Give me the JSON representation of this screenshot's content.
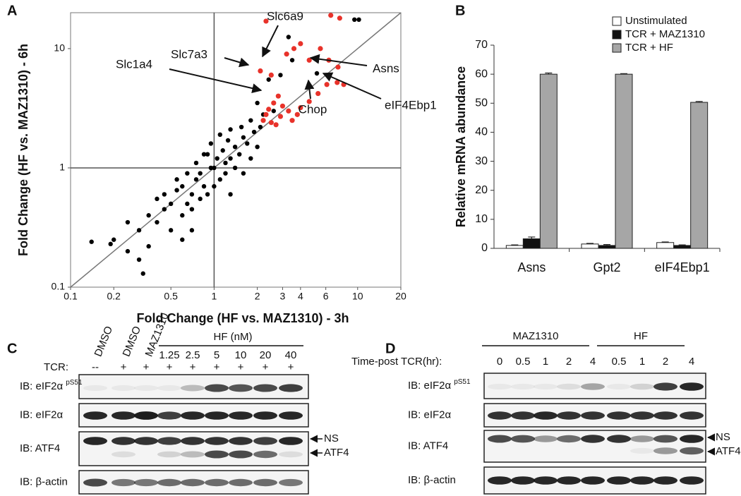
{
  "chart_data": [
    {
      "type": "scatter",
      "panel": "A",
      "x_label": "Fold Change (HF vs. MAZ1310) - 3h",
      "y_label": "Fold Change (HF vs. MAZ1310) - 6h",
      "log_x": true,
      "log_y": true,
      "xlim": [
        0.1,
        20
      ],
      "ylim": [
        0.1,
        20
      ],
      "xticks": [
        0.1,
        0.2,
        0.5,
        1,
        2,
        3,
        4,
        6,
        10,
        20
      ],
      "yticks": [
        0.1,
        1,
        10
      ],
      "hline": 1,
      "vline": 1,
      "diagonal": true,
      "series": [
        {
          "color": "#000000",
          "x": [
            1,
            0.8,
            1.2,
            0.7,
            1.4,
            0.6,
            0.9,
            1.1,
            1.6,
            0.5,
            0.55,
            0.65,
            0.75,
            0.85,
            0.95,
            1.05,
            1.15,
            1.3,
            1.5,
            1.7,
            1.9,
            2.1,
            0.45,
            0.4,
            0.35,
            0.3,
            0.5,
            0.6,
            0.7,
            0.8,
            0.9,
            1.0,
            1.2,
            1.4,
            0.45,
            0.55,
            0.65,
            0.75,
            0.85,
            0.95,
            1.1,
            1.3,
            1.8,
            2.2,
            2.6,
            0.2,
            0.25,
            0.14,
            0.19,
            0.3,
            0.32,
            0.35,
            0.6,
            0.7,
            1.6,
            1.3,
            2.4,
            2.9,
            3.5,
            3.3,
            9.5,
            10.2,
            5.2,
            0.4,
            1.25,
            1.55,
            0.25,
            2.0,
            2.0,
            1.8
          ],
          "y": [
            1,
            0.9,
            1.1,
            0.6,
            1.5,
            0.7,
            1.3,
            0.8,
            1.8,
            0.5,
            0.65,
            0.5,
            0.8,
            0.7,
            1.0,
            1.2,
            1.4,
            1.2,
            1.3,
            1.6,
            2.0,
            2.2,
            0.45,
            0.35,
            0.4,
            0.3,
            0.3,
            0.4,
            0.45,
            0.55,
            0.6,
            0.7,
            0.9,
            1.0,
            0.6,
            0.8,
            0.9,
            1.1,
            1.3,
            1.6,
            1.9,
            2.1,
            2.5,
            2.8,
            3.0,
            0.25,
            0.2,
            0.24,
            0.23,
            0.17,
            0.13,
            0.22,
            0.25,
            0.3,
            0.9,
            0.6,
            5.5,
            6.0,
            8.0,
            12.5,
            17.5,
            17.5,
            6.2,
            0.55,
            1.7,
            2.2,
            0.35,
            1.5,
            3.5,
            1.2
          ]
        },
        {
          "color": "#e8322a",
          "x": [
            2.3,
            6.5,
            7.5,
            3.2,
            3.6,
            4.0,
            4.6,
            5.5,
            6.3,
            7.3,
            2.1,
            2.5,
            6.1,
            7.2,
            8.0,
            2.6,
            2.8,
            3.0,
            2.3,
            2.2,
            2.5,
            2.9,
            3.3,
            4.0,
            4.6,
            3.5,
            2.7,
            2.4,
            3.8,
            5.3
          ],
          "y": [
            17,
            19,
            18,
            9,
            10,
            11,
            8,
            10,
            8,
            7,
            6.5,
            6,
            5,
            5.2,
            5,
            3.5,
            4,
            3.3,
            2.8,
            2.5,
            2.4,
            2.7,
            3.0,
            3.2,
            3.6,
            2.5,
            2.3,
            3.1,
            2.8,
            4.2
          ]
        }
      ],
      "annotations": [
        "Slc6a9",
        "Slc7a3",
        "Slc1a4",
        "Asns",
        "eIF4Ebp1",
        "Chop"
      ]
    },
    {
      "type": "bar",
      "panel": "B",
      "y_label": "Relative mRNA abundance",
      "categories": [
        "Asns",
        "Gpt2",
        "eIF4Ebp1"
      ],
      "ylim": [
        0,
        70
      ],
      "yticks": [
        0,
        10,
        20,
        30,
        40,
        50,
        60,
        70
      ],
      "legend": "top-right",
      "series": [
        {
          "name": "Unstimulated",
          "color": "#ffffff",
          "values": [
            1,
            1.5,
            2
          ],
          "errors": [
            0.2,
            0.2,
            0.2
          ]
        },
        {
          "name": "TCR + MAZ1310",
          "color": "#111111",
          "values": [
            3.3,
            1,
            1
          ],
          "errors": [
            0.6,
            0.3,
            0.2
          ]
        },
        {
          "name": "TCR + HF",
          "color": "#a6a6a6",
          "values": [
            60,
            60,
            50.3
          ],
          "errors": [
            0.4,
            0.2,
            0.3
          ]
        }
      ]
    }
  ],
  "blot_c": {
    "panel": "C",
    "lanes": [
      "DMSO",
      "DMSO",
      "MAZ1310"
    ],
    "group": "HF (nM)",
    "doses": [
      "1.25",
      "2.5",
      "5",
      "10",
      "20",
      "40"
    ],
    "tcr_label": "TCR:",
    "tcr": [
      "--",
      "+",
      "+",
      "+",
      "+",
      "+",
      "+",
      "+",
      "+"
    ],
    "rows": [
      {
        "label": "IB: eIF2α",
        "sup": "pS51"
      },
      {
        "label": "IB: eIF2α"
      },
      {
        "label": "IB: ATF4"
      },
      {
        "label": "IB: β-actin"
      }
    ],
    "markers": [
      "NS",
      "ATF4"
    ]
  },
  "blot_d": {
    "panel": "D",
    "groups": [
      "MAZ1310",
      "HF"
    ],
    "time_label": "Time-post TCR(hr):",
    "times": [
      "0",
      "0.5",
      "1",
      "2",
      "4",
      "0.5",
      "1",
      "2",
      "4"
    ],
    "rows": [
      {
        "label": "IB: eIF2α",
        "sup": "pS51"
      },
      {
        "label": "IB: eIF2α"
      },
      {
        "label": "IB: ATF4"
      },
      {
        "label": "IB: β-actin"
      }
    ],
    "markers": [
      "NS",
      "ATF4"
    ]
  }
}
